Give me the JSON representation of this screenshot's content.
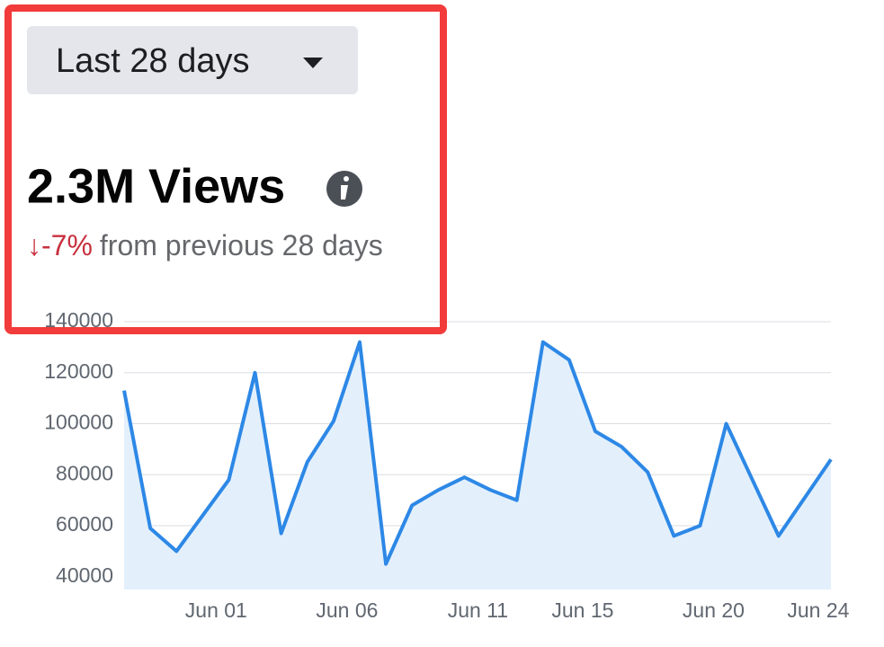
{
  "dropdown": {
    "label": "Last 28 days"
  },
  "summary": {
    "headline": "2.3M Views",
    "change": "↓-7%",
    "comparison": "from previous 28 days"
  },
  "chart_data": {
    "type": "area",
    "categories": [
      null,
      null,
      null,
      "Jun 01",
      null,
      null,
      null,
      null,
      "Jun 06",
      null,
      null,
      null,
      null,
      "Jun 11",
      null,
      null,
      null,
      "Jun 15",
      null,
      null,
      null,
      null,
      "Jun 20",
      null,
      null,
      null,
      "Jun 24",
      null
    ],
    "series": [
      {
        "color": "#2d88e6",
        "fill": "#e3f0fc",
        "values": [
          113000,
          59000,
          50000,
          64000,
          78000,
          120000,
          57000,
          85000,
          101000,
          132000,
          45000,
          68000,
          74000,
          79000,
          74000,
          70000,
          132000,
          125000,
          97000,
          91000,
          81000,
          56000,
          60000,
          100000,
          78000,
          56000,
          71000,
          86000
        ]
      }
    ],
    "ylim": [
      35000,
      140000
    ],
    "yticks": [
      40000,
      60000,
      80000,
      100000,
      120000,
      140000
    ],
    "grid": true
  }
}
